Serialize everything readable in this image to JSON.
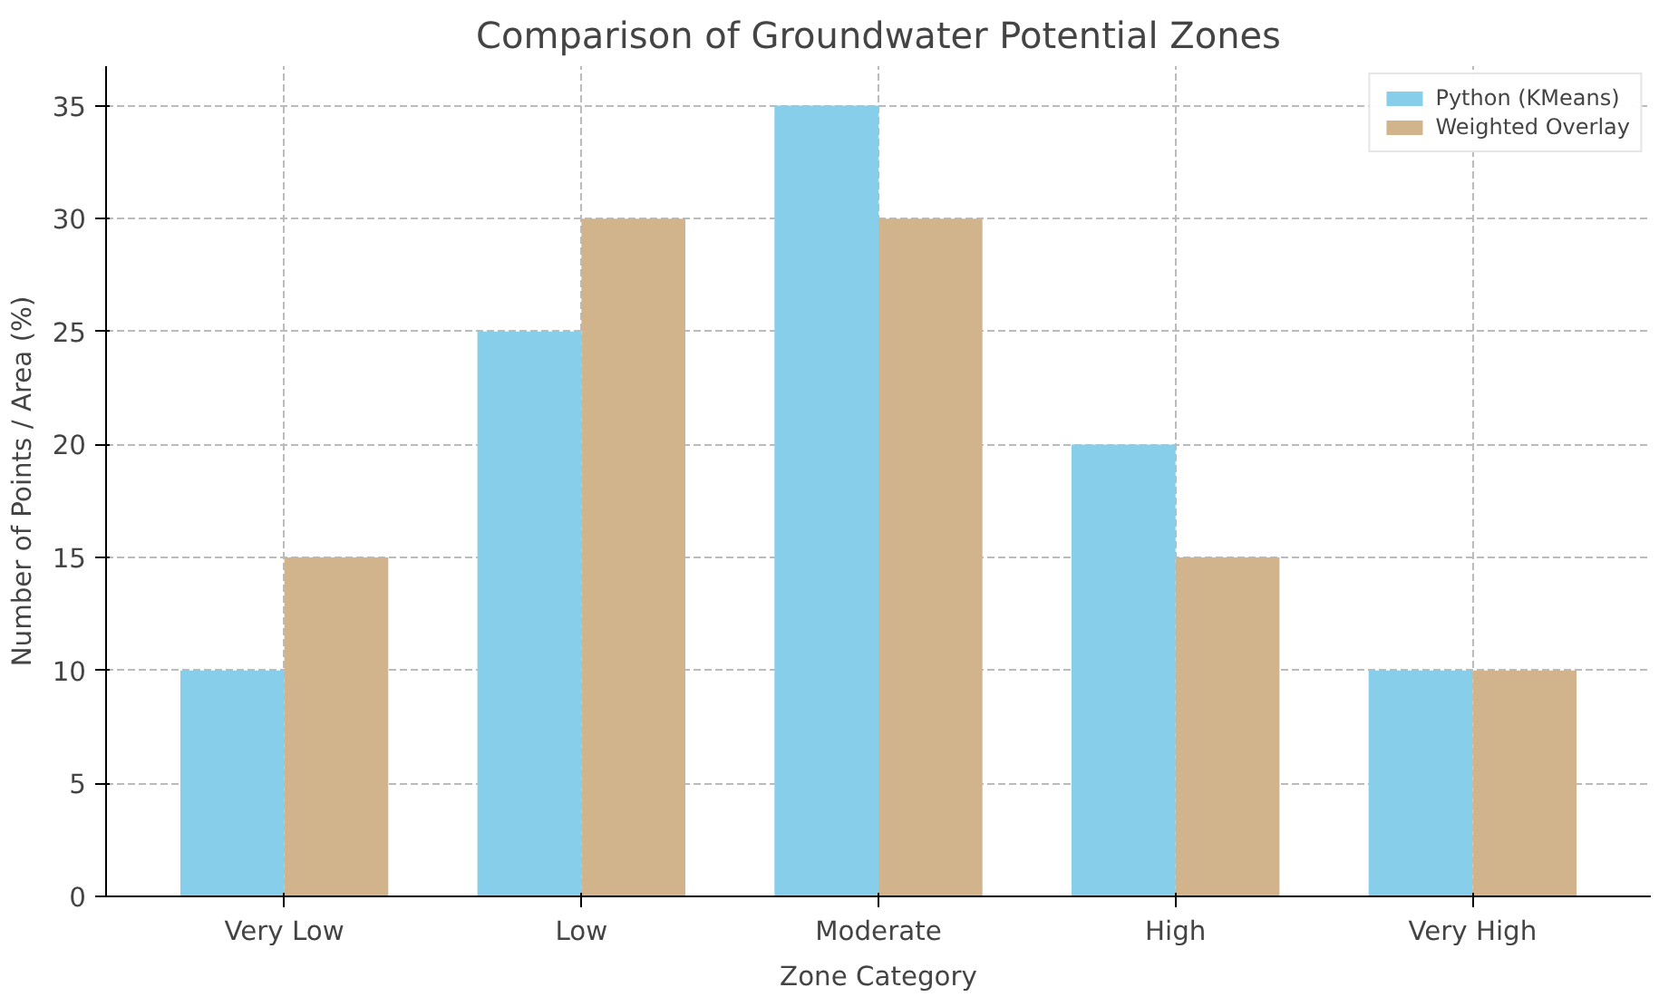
{
  "chart_data": {
    "type": "bar",
    "title": "Comparison of Groundwater Potential Zones",
    "xlabel": "Zone Category",
    "ylabel": "Number of Points / Area (%)",
    "categories": [
      "Very Low",
      "Low",
      "Moderate",
      "High",
      "Very High"
    ],
    "series": [
      {
        "name": "Python (KMeans)",
        "color": "#87ceeb",
        "values": [
          10,
          25,
          35,
          20,
          10
        ]
      },
      {
        "name": "Weighted Overlay",
        "color": "#d2b48c",
        "values": [
          15,
          30,
          30,
          15,
          10
        ]
      }
    ],
    "ylim": [
      0,
      36.75
    ],
    "yticks": [
      0,
      5,
      10,
      15,
      20,
      25,
      30,
      35
    ],
    "grid": true,
    "legend": "top right"
  }
}
